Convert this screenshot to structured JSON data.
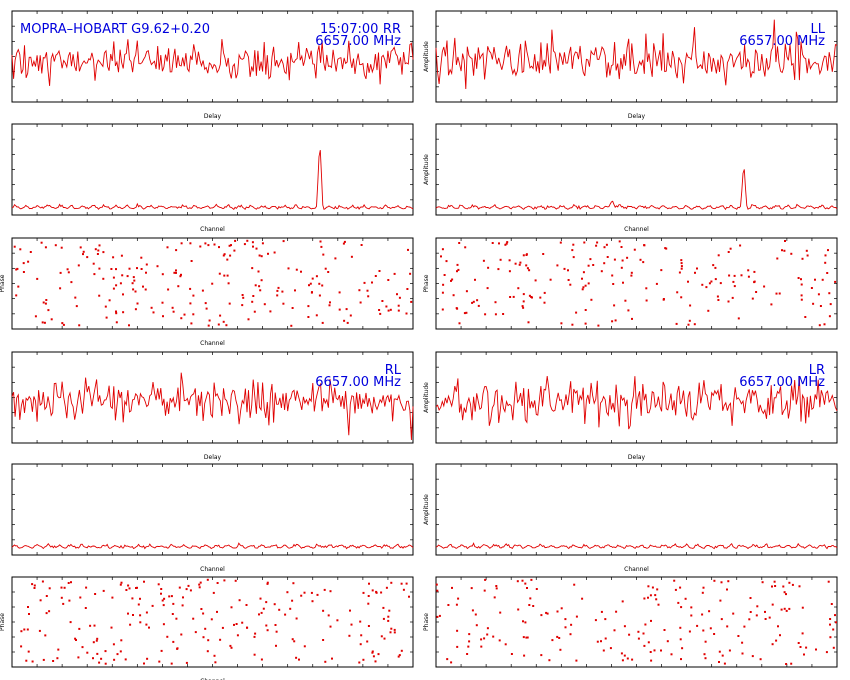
{
  "colors": {
    "trace": "#e00000",
    "annotation": "#0000dd",
    "axes": "#000000",
    "background": "#ffffff"
  },
  "header": {
    "baseline": "MOPRA–HOBART  G9.62+0.20",
    "time": "15:07:00"
  },
  "chart_data": [
    {
      "id": "rr-delay",
      "type": "line",
      "xlabel": "Delay",
      "ylabel": "",
      "pol": "RR",
      "freq": "6657.00 MHz",
      "ylim": [
        0,
        3.5
      ],
      "xlim": [
        -256,
        256
      ],
      "trace": "noise",
      "seed": 11,
      "base": 1.6,
      "noise": 0.55
    },
    {
      "id": "rr-channel",
      "type": "line",
      "xlabel": "Channel",
      "ylabel": "",
      "xlim": [
        0,
        512
      ],
      "ylim": [
        0,
        6
      ],
      "trace": "spectrum",
      "seed": 12,
      "base": 0.45,
      "noise": 0.25,
      "peaks": [
        {
          "x": 393,
          "height": 4.4
        }
      ]
    },
    {
      "id": "rr-phase",
      "type": "scatter",
      "xlabel": "Channel",
      "ylabel": "Phase",
      "xlim": [
        0,
        512
      ],
      "ylim": [
        -180,
        180
      ],
      "trace": "phase",
      "seed": 13,
      "count": 230
    },
    {
      "id": "ll-delay",
      "type": "line",
      "xlabel": "Delay",
      "ylabel": "Amplitude",
      "pol": "LL",
      "freq": "6657.00 MHz",
      "xlim": [
        -256,
        256
      ],
      "ylim": [
        0,
        3.5
      ],
      "trace": "noise",
      "seed": 21,
      "base": 1.6,
      "noise": 0.6
    },
    {
      "id": "ll-channel",
      "type": "line",
      "xlabel": "Channel",
      "ylabel": "Amplitude",
      "xlim": [
        0,
        512
      ],
      "ylim": [
        0,
        6
      ],
      "trace": "spectrum",
      "seed": 22,
      "base": 0.45,
      "noise": 0.25,
      "peaks": [
        {
          "x": 393,
          "height": 2.9
        },
        {
          "x": 225,
          "height": 0.6
        }
      ]
    },
    {
      "id": "ll-phase",
      "type": "scatter",
      "xlabel": "",
      "ylabel": "Phase",
      "xlim": [
        0,
        512
      ],
      "ylim": [
        -180,
        180
      ],
      "trace": "phase",
      "seed": 23,
      "count": 210
    },
    {
      "id": "rl-delay",
      "type": "line",
      "xlabel": "Delay",
      "ylabel": "",
      "pol": "RL",
      "freq": "6657.00 MHz",
      "xlim": [
        -256,
        256
      ],
      "ylim": [
        0,
        3.5
      ],
      "trace": "noise",
      "seed": 31,
      "base": 1.6,
      "noise": 0.55
    },
    {
      "id": "rl-channel",
      "type": "line",
      "xlabel": "Channel",
      "ylabel": "",
      "xlim": [
        0,
        512
      ],
      "ylim": [
        0,
        6
      ],
      "trace": "spectrum",
      "seed": 32,
      "base": 0.5,
      "noise": 0.25,
      "peaks": []
    },
    {
      "id": "rl-phase",
      "type": "scatter",
      "xlabel": "Channel",
      "ylabel": "Phase",
      "xlim": [
        0,
        512
      ],
      "ylim": [
        -180,
        180
      ],
      "trace": "phase",
      "seed": 33,
      "count": 230
    },
    {
      "id": "lr-delay",
      "type": "line",
      "xlabel": "Delay",
      "ylabel": "Amplitude",
      "pol": "LR",
      "freq": "6657.00 MHz",
      "xlim": [
        -256,
        256
      ],
      "ylim": [
        0,
        3.5
      ],
      "trace": "noise",
      "seed": 41,
      "base": 1.6,
      "noise": 0.6
    },
    {
      "id": "lr-channel",
      "type": "line",
      "xlabel": "Channel",
      "ylabel": "Amplitude",
      "xlim": [
        0,
        512
      ],
      "ylim": [
        0,
        6
      ],
      "trace": "spectrum",
      "seed": 42,
      "base": 0.5,
      "noise": 0.25,
      "peaks": []
    },
    {
      "id": "lr-phase",
      "type": "scatter",
      "xlabel": "",
      "ylabel": "Phase",
      "xlim": [
        0,
        512
      ],
      "ylim": [
        -180,
        180
      ],
      "trace": "phase",
      "seed": 43,
      "count": 200
    }
  ]
}
